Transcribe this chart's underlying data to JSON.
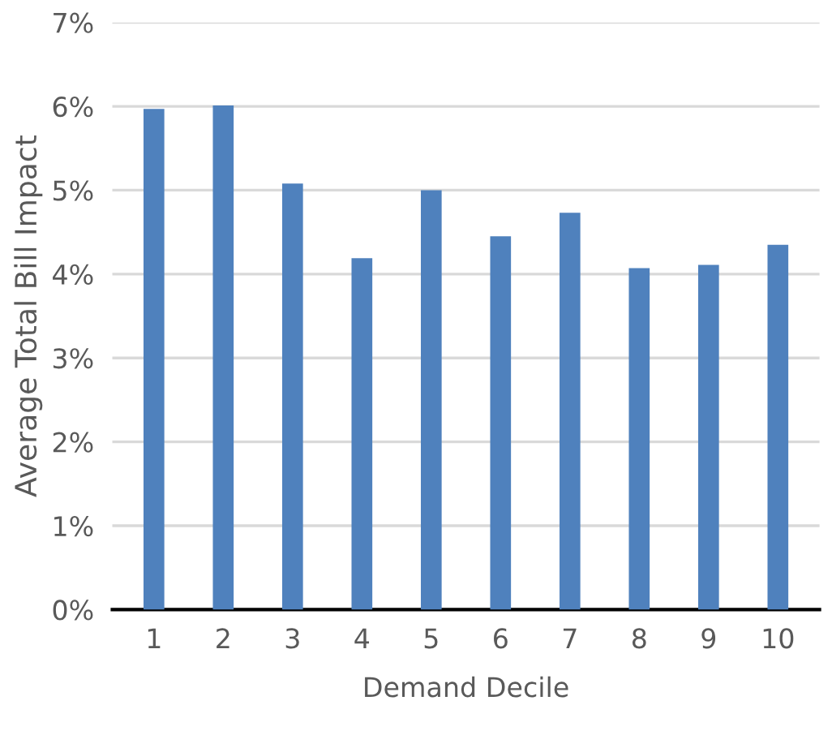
{
  "chart_data": {
    "type": "bar",
    "xlabel": "Demand Decile",
    "ylabel": "Average Total Bill Impact",
    "categories": [
      "1",
      "2",
      "3",
      "4",
      "5",
      "6",
      "7",
      "8",
      "9",
      "10"
    ],
    "values": [
      5.97,
      6.01,
      5.08,
      4.19,
      5.0,
      4.45,
      4.73,
      4.07,
      4.11,
      4.35
    ],
    "color": "#4f81bd",
    "ylim": [
      0,
      7
    ],
    "yticks": [
      {
        "value": 0,
        "label": "0%"
      },
      {
        "value": 1,
        "label": "1%"
      },
      {
        "value": 2,
        "label": "2%"
      },
      {
        "value": 3,
        "label": "3%"
      },
      {
        "value": 4,
        "label": "4%"
      },
      {
        "value": 5,
        "label": "5%"
      },
      {
        "value": 6,
        "label": "6%"
      },
      {
        "value": 7,
        "label": "7%"
      }
    ],
    "grid": "y"
  }
}
